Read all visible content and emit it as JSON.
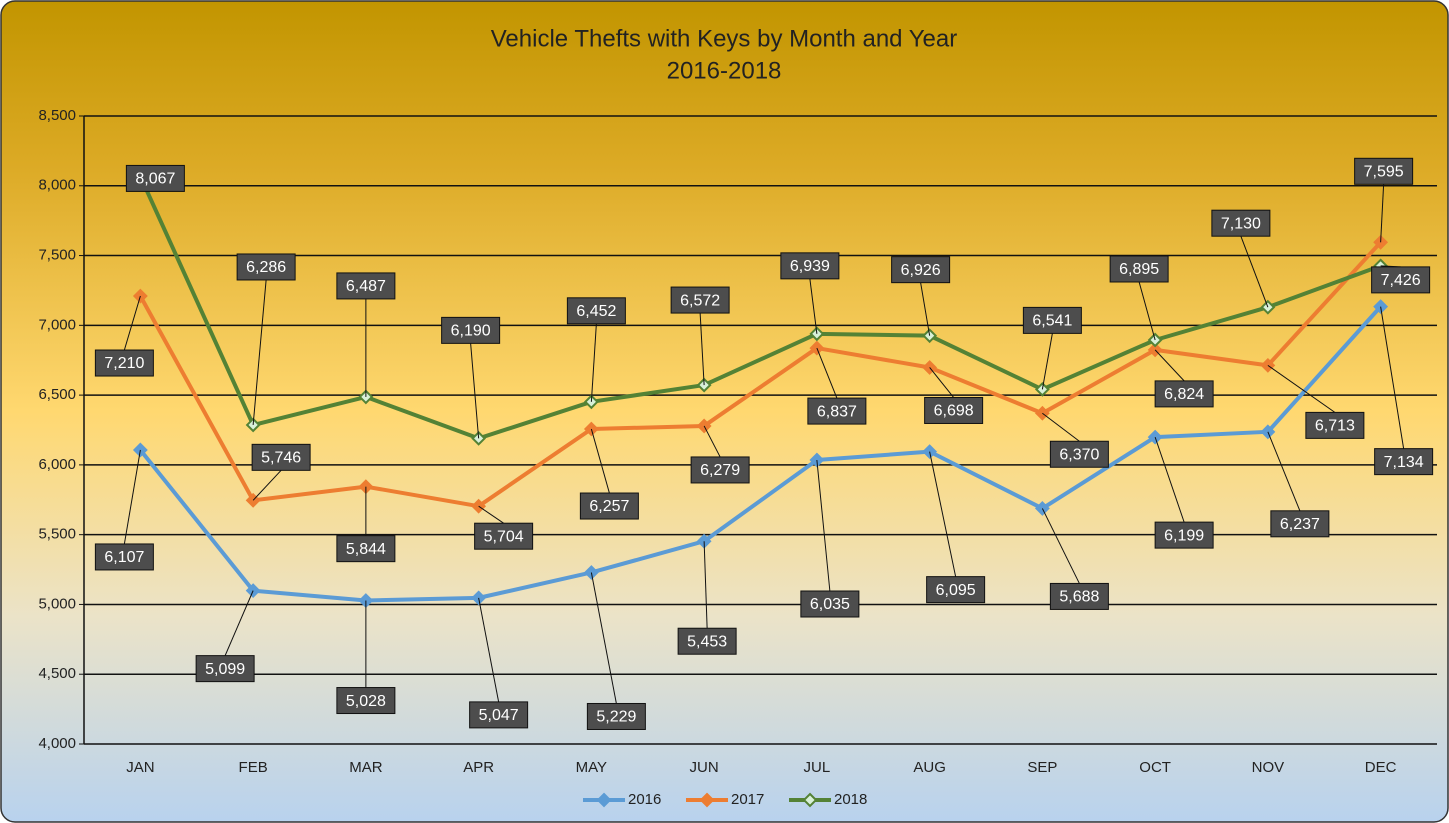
{
  "chart_data": {
    "type": "line",
    "title": "Vehicle Thefts with Keys by Month and Year",
    "subtitle": "2016-2018",
    "categories": [
      "JAN",
      "FEB",
      "MAR",
      "APR",
      "MAY",
      "JUN",
      "JUL",
      "AUG",
      "SEP",
      "OCT",
      "NOV",
      "DEC"
    ],
    "series": [
      {
        "name": "2016",
        "color": "#5b9bd5",
        "values": [
          6107,
          5099,
          5028,
          5047,
          5229,
          5453,
          6035,
          6095,
          5688,
          6199,
          6237,
          7134
        ],
        "value_labels": [
          "6,107",
          "5,099",
          "5,028",
          "5,047",
          "5,229",
          "5,453",
          "6,035",
          "6,095",
          "5,688",
          "6,199",
          "6,237",
          "7,134"
        ]
      },
      {
        "name": "2017",
        "color": "#ed7d31",
        "values": [
          7210,
          5746,
          5844,
          5704,
          6257,
          6279,
          6837,
          6698,
          6370,
          6824,
          6713,
          7595
        ],
        "value_labels": [
          "7,210",
          "5,746",
          "5,844",
          "5,704",
          "6,257",
          "6,279",
          "6,837",
          "6,698",
          "6,370",
          "6,824",
          "6,713",
          "7,595"
        ]
      },
      {
        "name": "2018",
        "color": "#548235",
        "values": [
          8067,
          6286,
          6487,
          6190,
          6452,
          6572,
          6939,
          6926,
          6541,
          6895,
          7130,
          7426
        ],
        "value_labels": [
          "8,067",
          "6,286",
          "6,487",
          "6,190",
          "6,452",
          "6,572",
          "6,939",
          "6,926",
          "6,541",
          "6,895",
          "7,130",
          "7,426"
        ]
      }
    ],
    "ylim": [
      4000,
      8500
    ],
    "yticks": [
      {
        "value": 4000,
        "label": "4,000"
      },
      {
        "value": 4500,
        "label": "4,500"
      },
      {
        "value": 5000,
        "label": "5,000"
      },
      {
        "value": 5500,
        "label": "5,500"
      },
      {
        "value": 6000,
        "label": "6,000"
      },
      {
        "value": 6500,
        "label": "6,500"
      },
      {
        "value": 7000,
        "label": "7,000"
      },
      {
        "value": 7500,
        "label": "7,500"
      },
      {
        "value": 8000,
        "label": "8,000"
      },
      {
        "value": 8500,
        "label": "8,500"
      }
    ],
    "grid": true,
    "legend": "bottom"
  }
}
